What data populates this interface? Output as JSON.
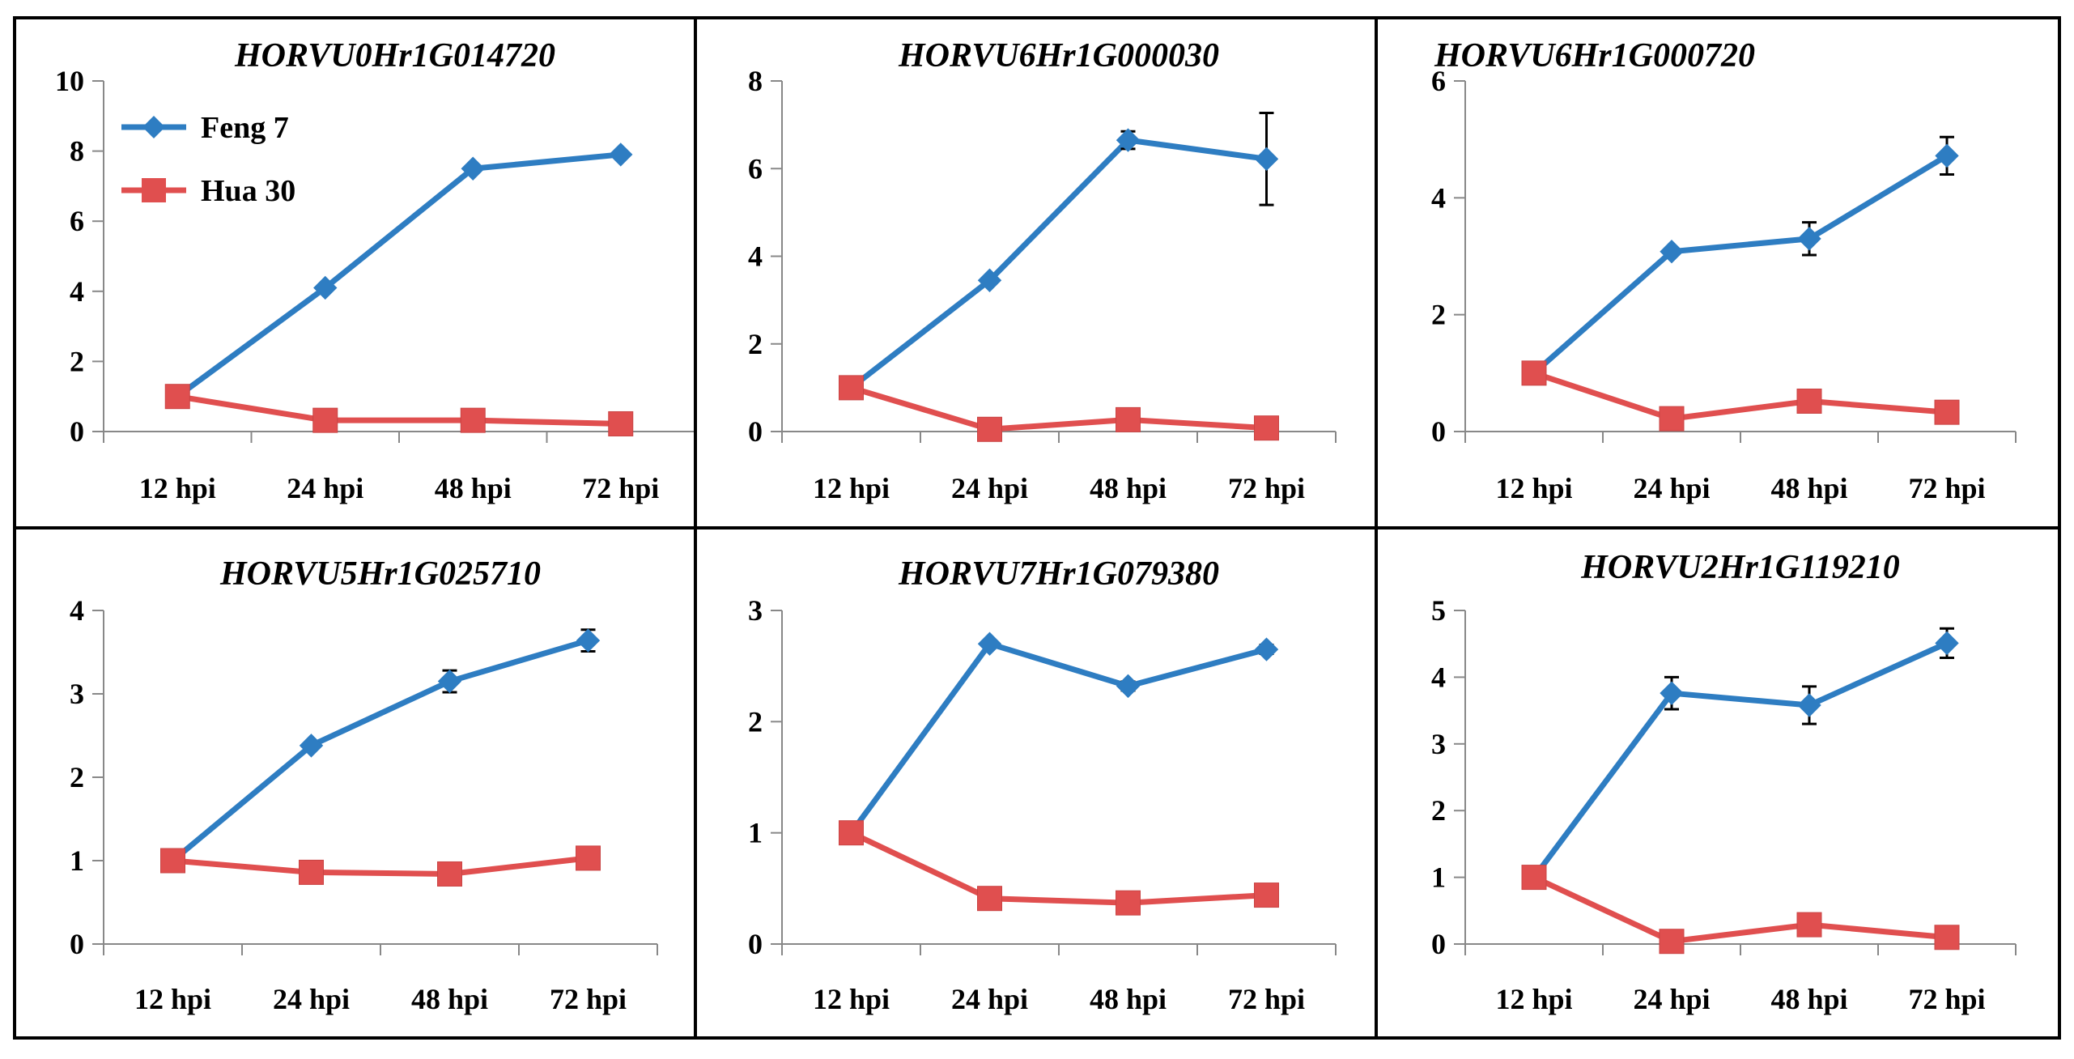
{
  "chart_data": [
    {
      "type": "line",
      "title": "HORVU0Hr1G014720",
      "categories": [
        "12 hpi",
        "24 hpi",
        "48 hpi",
        "72 hpi"
      ],
      "ylim": [
        0,
        10
      ],
      "yticks": [
        0,
        2,
        4,
        6,
        8,
        10
      ],
      "legend": "top-left",
      "series": [
        {
          "name": "Feng 7",
          "color": "#2E7DC2",
          "marker": "diamond",
          "values": [
            1.0,
            4.1,
            7.5,
            7.9
          ],
          "errors": [
            0,
            0,
            0,
            0
          ]
        },
        {
          "name": "Hua 30",
          "color": "#E04F4F",
          "marker": "square",
          "values": [
            1.0,
            0.32,
            0.32,
            0.22
          ],
          "errors": [
            0,
            0,
            0,
            0
          ]
        }
      ]
    },
    {
      "type": "line",
      "title": "HORVU6Hr1G000030",
      "categories": [
        "12 hpi",
        "24 hpi",
        "48 hpi",
        "72 hpi"
      ],
      "ylim": [
        0,
        8
      ],
      "yticks": [
        0,
        2,
        4,
        6,
        8
      ],
      "series": [
        {
          "name": "Feng 7",
          "color": "#2E7DC2",
          "marker": "diamond",
          "values": [
            1.0,
            3.45,
            6.65,
            6.22
          ],
          "errors": [
            0,
            0.05,
            0.2,
            1.05
          ]
        },
        {
          "name": "Hua 30",
          "color": "#E04F4F",
          "marker": "square",
          "values": [
            1.0,
            0.05,
            0.27,
            0.08
          ],
          "errors": [
            0,
            0,
            0,
            0
          ]
        }
      ]
    },
    {
      "type": "line",
      "title": "HORVU6Hr1G000720",
      "categories": [
        "12 hpi",
        "24 hpi",
        "48 hpi",
        "72 hpi"
      ],
      "ylim": [
        0,
        6
      ],
      "yticks": [
        0,
        2,
        4,
        6
      ],
      "series": [
        {
          "name": "Feng 7",
          "color": "#2E7DC2",
          "marker": "diamond",
          "values": [
            1.0,
            3.08,
            3.3,
            4.72
          ],
          "errors": [
            0,
            0.05,
            0.28,
            0.32
          ]
        },
        {
          "name": "Hua 30",
          "color": "#E04F4F",
          "marker": "square",
          "values": [
            1.0,
            0.22,
            0.52,
            0.33
          ],
          "errors": [
            0,
            0,
            0,
            0
          ]
        }
      ]
    },
    {
      "type": "line",
      "title": "HORVU5Hr1G025710",
      "categories": [
        "12 hpi",
        "24 hpi",
        "48 hpi",
        "72 hpi"
      ],
      "ylim": [
        0,
        4
      ],
      "yticks": [
        0,
        1,
        2,
        3,
        4
      ],
      "series": [
        {
          "name": "Feng 7",
          "color": "#2E7DC2",
          "marker": "diamond",
          "values": [
            1.0,
            2.38,
            3.15,
            3.64
          ],
          "errors": [
            0,
            0.04,
            0.13,
            0.13
          ]
        },
        {
          "name": "Hua 30",
          "color": "#E04F4F",
          "marker": "square",
          "values": [
            1.0,
            0.86,
            0.84,
            1.03
          ],
          "errors": [
            0,
            0,
            0,
            0
          ]
        }
      ]
    },
    {
      "type": "line",
      "title": "HORVU7Hr1G079380",
      "categories": [
        "12 hpi",
        "24 hpi",
        "48 hpi",
        "72 hpi"
      ],
      "ylim": [
        0,
        3
      ],
      "yticks": [
        0,
        1,
        2,
        3
      ],
      "series": [
        {
          "name": "Feng 7",
          "color": "#2E7DC2",
          "marker": "diamond",
          "values": [
            1.0,
            2.7,
            2.32,
            2.65
          ],
          "errors": [
            0,
            0,
            0.04,
            0.04
          ]
        },
        {
          "name": "Hua 30",
          "color": "#E04F4F",
          "marker": "square",
          "values": [
            1.0,
            0.41,
            0.37,
            0.44
          ],
          "errors": [
            0,
            0,
            0,
            0
          ]
        }
      ]
    },
    {
      "type": "line",
      "title": "HORVU2Hr1G119210",
      "categories": [
        "12 hpi",
        "24 hpi",
        "48 hpi",
        "72 hpi"
      ],
      "ylim": [
        0,
        5
      ],
      "yticks": [
        0,
        1,
        2,
        3,
        4,
        5
      ],
      "series": [
        {
          "name": "Feng 7",
          "color": "#2E7DC2",
          "marker": "diamond",
          "values": [
            1.0,
            3.76,
            3.58,
            4.51
          ],
          "errors": [
            0,
            0.24,
            0.28,
            0.22
          ]
        },
        {
          "name": "Hua 30",
          "color": "#E04F4F",
          "marker": "square",
          "values": [
            1.0,
            0.04,
            0.29,
            0.1
          ],
          "errors": [
            0,
            0,
            0,
            0
          ]
        }
      ]
    }
  ]
}
